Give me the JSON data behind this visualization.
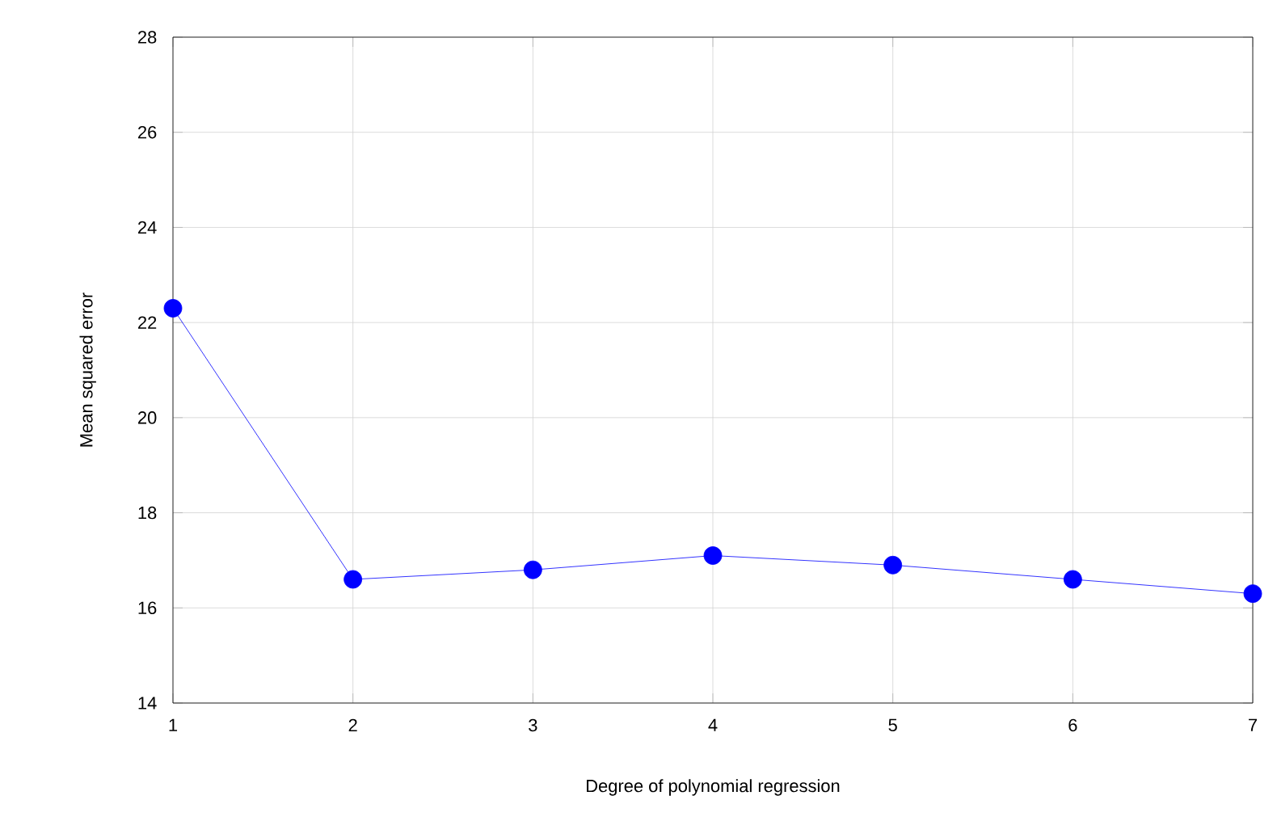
{
  "chart_data": {
    "type": "line",
    "xlabel": "Degree of polynomial regression",
    "ylabel": "Mean squared error",
    "x": [
      1,
      2,
      3,
      4,
      5,
      6,
      7
    ],
    "series": [
      {
        "color": "#0000ff",
        "values": [
          22.3,
          16.6,
          16.8,
          17.1,
          16.9,
          16.6,
          16.3
        ]
      }
    ],
    "xlim": [
      1,
      7
    ],
    "ylim": [
      14,
      28
    ],
    "xticks": [
      1,
      2,
      3,
      4,
      5,
      6,
      7
    ],
    "yticks": [
      14,
      16,
      18,
      20,
      22,
      24,
      26,
      28
    ],
    "grid": true,
    "marker": "circle",
    "line_style": "solid"
  }
}
